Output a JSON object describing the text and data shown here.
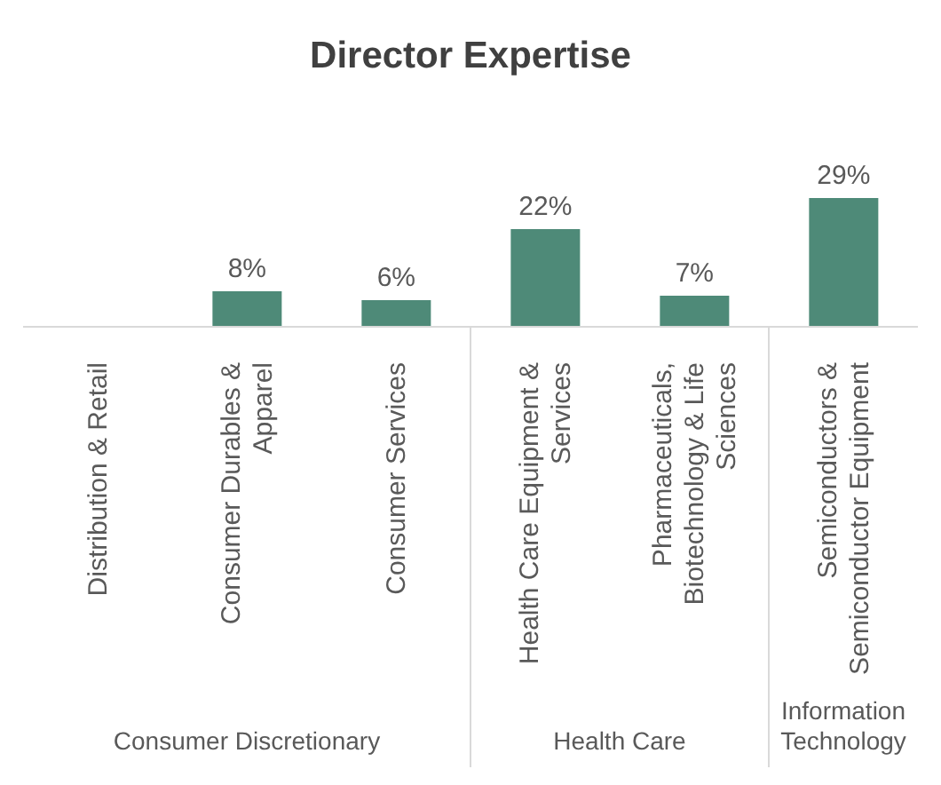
{
  "chart_data": {
    "type": "bar",
    "title": "Director Expertise",
    "categories": [
      "Distribution & Retail",
      "Consumer Durables & Apparel",
      "Consumer Services",
      "Health Care Equipment & Services",
      "Pharmaceuticals, Biotechnology & Life Sciences",
      "Semiconductors & Semiconductor Equipment"
    ],
    "values": [
      null,
      8,
      6,
      22,
      7,
      29
    ],
    "value_labels": [
      null,
      "8%",
      "6%",
      "22%",
      "7%",
      "29%"
    ],
    "color": "#4e8a78",
    "annotations": [
      "Consumer Discretionary",
      "Health Care",
      "Information Technology"
    ]
  }
}
